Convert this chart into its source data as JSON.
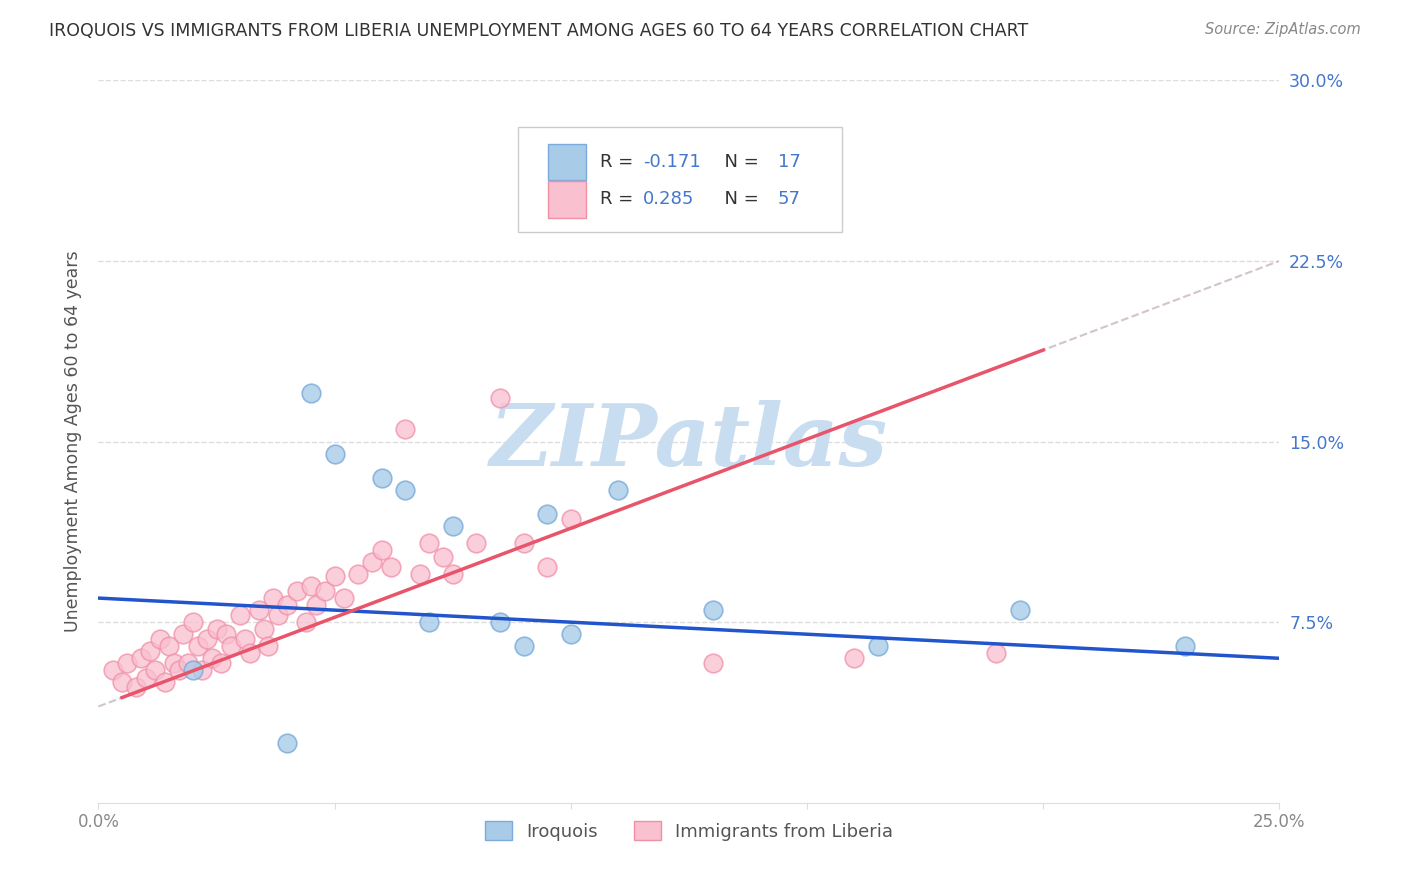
{
  "title": "IROQUOIS VS IMMIGRANTS FROM LIBERIA UNEMPLOYMENT AMONG AGES 60 TO 64 YEARS CORRELATION CHART",
  "source": "Source: ZipAtlas.com",
  "ylabel": "Unemployment Among Ages 60 to 64 years",
  "xlim": [
    0.0,
    0.25
  ],
  "ylim": [
    0.0,
    0.3
  ],
  "xticks": [
    0.0,
    0.05,
    0.1,
    0.15,
    0.2,
    0.25
  ],
  "xticklabels": [
    "0.0%",
    "",
    "",
    "",
    "",
    "25.0%"
  ],
  "yticks": [
    0.075,
    0.15,
    0.225,
    0.3
  ],
  "yticklabels": [
    "7.5%",
    "15.0%",
    "22.5%",
    "30.0%"
  ],
  "iroquois_R": -0.171,
  "iroquois_N": 17,
  "liberia_R": 0.285,
  "liberia_N": 57,
  "iroquois_dot_color": "#a8cce8",
  "iroquois_edge_color": "#7aabda",
  "liberia_dot_color": "#f9c0d0",
  "liberia_edge_color": "#f090a8",
  "iroquois_line_color": "#2255cc",
  "liberia_line_color": "#e8556a",
  "liberia_dash_color": "#ccbbbb",
  "ytick_color": "#4477cc",
  "xtick_color": "#888888",
  "watermark": "ZIPatlas",
  "watermark_color": "#c8ddf0",
  "legend_box_color": "#f5f5f5",
  "legend_edge_color": "#cccccc",
  "iroquois_scatter_x": [
    0.02,
    0.045,
    0.05,
    0.06,
    0.065,
    0.075,
    0.085,
    0.09,
    0.095,
    0.1,
    0.11,
    0.13,
    0.165,
    0.195,
    0.23,
    0.04,
    0.07
  ],
  "iroquois_scatter_y": [
    0.055,
    0.17,
    0.145,
    0.135,
    0.13,
    0.115,
    0.075,
    0.065,
    0.12,
    0.07,
    0.13,
    0.08,
    0.065,
    0.08,
    0.065,
    0.025,
    0.075
  ],
  "liberia_scatter_x": [
    0.003,
    0.005,
    0.006,
    0.008,
    0.009,
    0.01,
    0.011,
    0.012,
    0.013,
    0.014,
    0.015,
    0.016,
    0.017,
    0.018,
    0.019,
    0.02,
    0.021,
    0.022,
    0.023,
    0.024,
    0.025,
    0.026,
    0.027,
    0.028,
    0.03,
    0.031,
    0.032,
    0.034,
    0.035,
    0.036,
    0.037,
    0.038,
    0.04,
    0.042,
    0.044,
    0.045,
    0.046,
    0.048,
    0.05,
    0.052,
    0.055,
    0.058,
    0.06,
    0.062,
    0.065,
    0.068,
    0.07,
    0.073,
    0.075,
    0.08,
    0.085,
    0.09,
    0.095,
    0.1,
    0.13,
    0.16,
    0.19
  ],
  "liberia_scatter_y": [
    0.055,
    0.05,
    0.058,
    0.048,
    0.06,
    0.052,
    0.063,
    0.055,
    0.068,
    0.05,
    0.065,
    0.058,
    0.055,
    0.07,
    0.058,
    0.075,
    0.065,
    0.055,
    0.068,
    0.06,
    0.072,
    0.058,
    0.07,
    0.065,
    0.078,
    0.068,
    0.062,
    0.08,
    0.072,
    0.065,
    0.085,
    0.078,
    0.082,
    0.088,
    0.075,
    0.09,
    0.082,
    0.088,
    0.094,
    0.085,
    0.095,
    0.1,
    0.105,
    0.098,
    0.155,
    0.095,
    0.108,
    0.102,
    0.095,
    0.108,
    0.168,
    0.108,
    0.098,
    0.118,
    0.058,
    0.06,
    0.062
  ],
  "iroquois_trendline_x0": 0.0,
  "iroquois_trendline_y0": 0.085,
  "iroquois_trendline_x1": 0.25,
  "iroquois_trendline_y1": 0.06,
  "liberia_trendline_x0": 0.0,
  "liberia_trendline_y0": 0.04,
  "liberia_trendline_x1": 0.25,
  "liberia_trendline_y1": 0.225
}
